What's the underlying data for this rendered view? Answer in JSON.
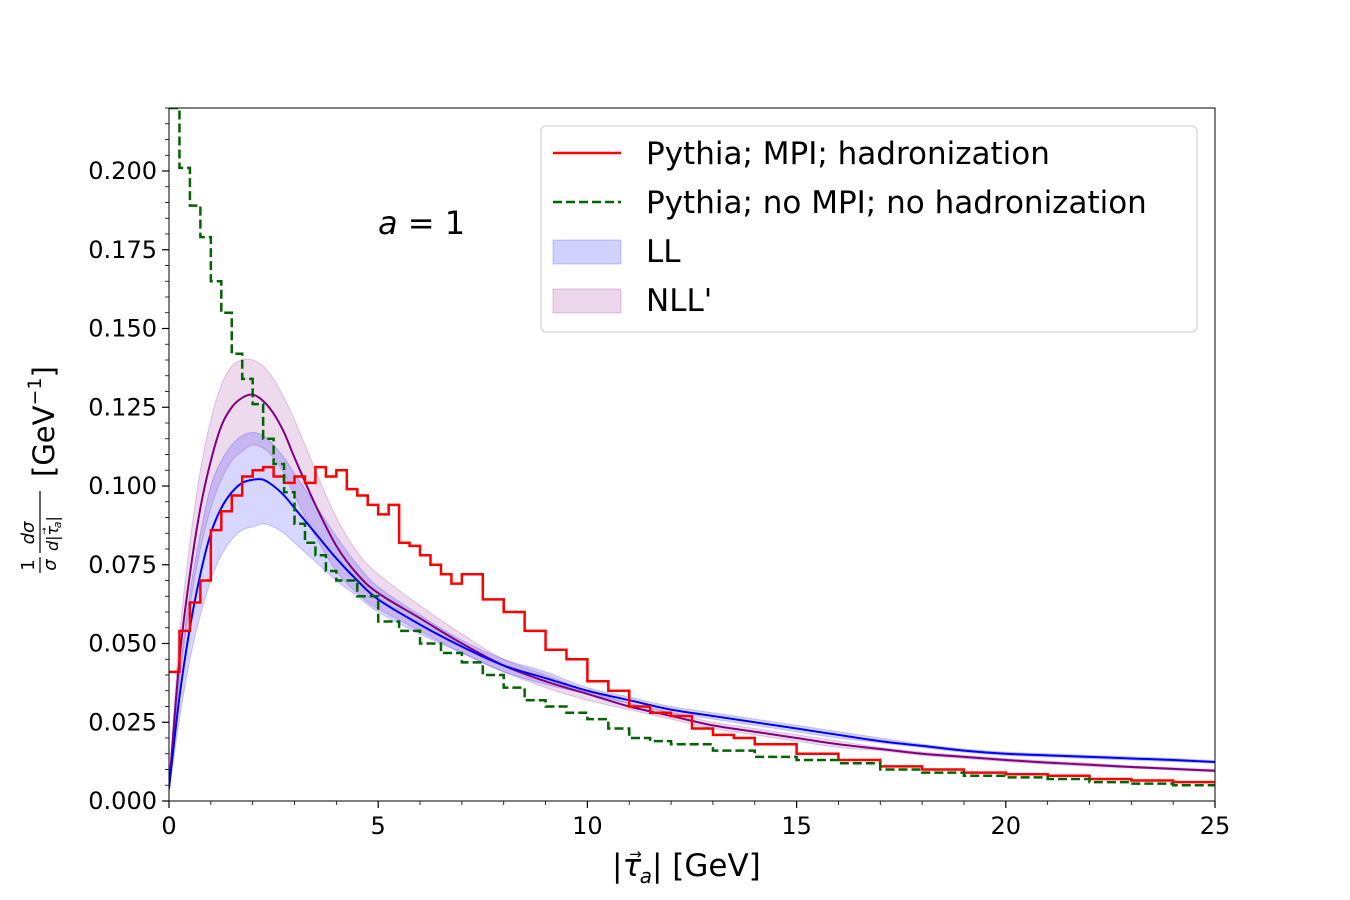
{
  "chart_data": {
    "type": "line",
    "title": "",
    "annotation": {
      "a_italic": "a",
      "a_rest": " = 1"
    },
    "xlabel": {
      "pre": "|",
      "tau": "τ",
      "arrow": "→",
      "sub": "a",
      "post": "| [GeV]"
    },
    "ylabel": {
      "one": "1",
      "sigma": "σ",
      "dsigma": "dσ",
      "d": "d|",
      "tau": "τ",
      "arrow": "→",
      "sub": "a",
      "bar": "|",
      "unit_pre": "[GeV",
      "unit_exp": "−1",
      "unit_post": "]"
    },
    "xlim": [
      0,
      25
    ],
    "ylim": [
      0,
      0.22
    ],
    "xticks": [
      0,
      5,
      10,
      15,
      20,
      25
    ],
    "xtick_labels": [
      "0",
      "5",
      "10",
      "15",
      "20",
      "25"
    ],
    "yticks": [
      0,
      0.025,
      0.05,
      0.075,
      0.1,
      0.125,
      0.15,
      0.175,
      0.2
    ],
    "ytick_labels": [
      "0.000",
      "0.025",
      "0.050",
      "0.075",
      "0.100",
      "0.125",
      "0.150",
      "0.175",
      "0.200"
    ],
    "legend": {
      "position": "top-right",
      "entries": [
        {
          "label": "Pythia; MPI; hadronization",
          "color": "#ff0000",
          "style": "solid"
        },
        {
          "label": "Pythia; no MPI; no hadronization",
          "color": "#006400",
          "style": "dashed"
        },
        {
          "label": "LL",
          "color": "#0000ff",
          "style": "band"
        },
        {
          "label": "NLL'",
          "color": "#800080",
          "style": "band"
        }
      ]
    },
    "series": [
      {
        "name": "Pythia; MPI; hadronization",
        "kind": "step",
        "color": "#ff0000",
        "x": [
          0,
          0.25,
          0.5,
          0.75,
          1.0,
          1.25,
          1.5,
          1.75,
          2.0,
          2.25,
          2.5,
          2.75,
          3.0,
          3.25,
          3.5,
          3.75,
          4.0,
          4.25,
          4.5,
          4.75,
          5.0,
          5.25,
          5.5,
          5.75,
          6.0,
          6.25,
          6.5,
          6.75,
          7.0,
          7.5,
          8.0,
          8.5,
          9.0,
          9.5,
          10.0,
          10.5,
          11.0,
          11.5,
          12.0,
          12.5,
          13.0,
          13.5,
          14.0,
          15.0,
          16.0,
          17.0,
          18.0,
          19.0,
          20.0,
          21.0,
          22.0,
          23.0,
          24.0,
          25.0
        ],
        "values": [
          0.041,
          0.054,
          0.063,
          0.07,
          0.086,
          0.092,
          0.097,
          0.103,
          0.105,
          0.106,
          0.103,
          0.101,
          0.103,
          0.101,
          0.106,
          0.103,
          0.105,
          0.099,
          0.097,
          0.094,
          0.091,
          0.094,
          0.082,
          0.081,
          0.078,
          0.075,
          0.072,
          0.069,
          0.072,
          0.064,
          0.06,
          0.054,
          0.048,
          0.045,
          0.038,
          0.035,
          0.03,
          0.028,
          0.027,
          0.023,
          0.021,
          0.02,
          0.018,
          0.015,
          0.013,
          0.011,
          0.01,
          0.009,
          0.0085,
          0.008,
          0.007,
          0.0065,
          0.006,
          0.005
        ]
      },
      {
        "name": "Pythia; no MPI; no hadronization",
        "kind": "step",
        "color": "#006400",
        "dashed": true,
        "x": [
          0,
          0.25,
          0.5,
          0.75,
          1.0,
          1.25,
          1.5,
          1.75,
          2.0,
          2.25,
          2.5,
          2.75,
          3.0,
          3.25,
          3.5,
          3.75,
          4.0,
          4.5,
          5.0,
          5.5,
          6.0,
          6.5,
          7.0,
          7.5,
          8.0,
          8.5,
          9.0,
          9.5,
          10.0,
          10.5,
          11.0,
          11.5,
          12.0,
          13.0,
          14.0,
          15.0,
          16.0,
          17.0,
          18.0,
          19.0,
          20.0,
          21.0,
          22.0,
          23.0,
          24.0,
          25.0
        ],
        "values": [
          0.22,
          0.201,
          0.189,
          0.179,
          0.165,
          0.155,
          0.142,
          0.134,
          0.126,
          0.115,
          0.107,
          0.098,
          0.088,
          0.082,
          0.078,
          0.073,
          0.07,
          0.065,
          0.057,
          0.054,
          0.05,
          0.047,
          0.044,
          0.04,
          0.036,
          0.032,
          0.03,
          0.028,
          0.026,
          0.023,
          0.02,
          0.019,
          0.018,
          0.016,
          0.014,
          0.013,
          0.012,
          0.01,
          0.009,
          0.008,
          0.0075,
          0.007,
          0.006,
          0.0055,
          0.005,
          0.004
        ]
      },
      {
        "name": "NLL'",
        "kind": "band",
        "color": "#800080",
        "band_color": "#d8a8d8",
        "x": [
          0,
          0.25,
          0.5,
          0.75,
          1.0,
          1.25,
          1.5,
          1.75,
          2.0,
          2.25,
          2.5,
          2.75,
          3.0,
          3.5,
          4.0,
          4.5,
          5.0,
          6.0,
          7.0,
          8.0,
          9.0,
          10.0,
          11.0,
          12.0,
          13.0,
          14.0,
          15.0,
          16.0,
          17.0,
          18.0,
          19.0,
          20.0,
          21.0,
          22.0,
          23.0,
          24.0,
          25.0
        ],
        "central": [
          0.004,
          0.045,
          0.072,
          0.093,
          0.108,
          0.119,
          0.125,
          0.128,
          0.129,
          0.127,
          0.123,
          0.117,
          0.109,
          0.094,
          0.081,
          0.072,
          0.066,
          0.058,
          0.05,
          0.043,
          0.038,
          0.034,
          0.03,
          0.027,
          0.024,
          0.022,
          0.02,
          0.018,
          0.0165,
          0.015,
          0.014,
          0.013,
          0.0122,
          0.0115,
          0.0108,
          0.0102,
          0.0096
        ],
        "lower": [
          0.003,
          0.038,
          0.062,
          0.08,
          0.093,
          0.102,
          0.108,
          0.111,
          0.113,
          0.112,
          0.109,
          0.104,
          0.097,
          0.084,
          0.073,
          0.066,
          0.061,
          0.054,
          0.047,
          0.041,
          0.036,
          0.032,
          0.029,
          0.026,
          0.023,
          0.021,
          0.019,
          0.017,
          0.016,
          0.0145,
          0.0135,
          0.0125,
          0.0117,
          0.011,
          0.0104,
          0.0098,
          0.0092
        ],
        "upper": [
          0.005,
          0.052,
          0.082,
          0.105,
          0.121,
          0.132,
          0.138,
          0.14,
          0.14,
          0.138,
          0.134,
          0.128,
          0.121,
          0.105,
          0.09,
          0.079,
          0.072,
          0.062,
          0.053,
          0.045,
          0.04,
          0.035,
          0.031,
          0.028,
          0.025,
          0.023,
          0.021,
          0.019,
          0.017,
          0.0155,
          0.0145,
          0.0135,
          0.0127,
          0.012,
          0.0112,
          0.0106,
          0.01
        ]
      },
      {
        "name": "LL",
        "kind": "band",
        "color": "#0000ff",
        "band_color": "#a8a8f8",
        "x": [
          0,
          0.25,
          0.5,
          0.75,
          1.0,
          1.25,
          1.5,
          1.75,
          2.0,
          2.25,
          2.5,
          2.75,
          3.0,
          3.5,
          4.0,
          4.5,
          5.0,
          6.0,
          7.0,
          8.0,
          9.0,
          10.0,
          11.0,
          12.0,
          13.0,
          14.0,
          15.0,
          16.0,
          17.0,
          18.0,
          19.0,
          20.0,
          21.0,
          22.0,
          23.0,
          24.0,
          25.0
        ],
        "central": [
          0.004,
          0.033,
          0.055,
          0.072,
          0.085,
          0.093,
          0.098,
          0.101,
          0.102,
          0.102,
          0.1,
          0.097,
          0.093,
          0.085,
          0.077,
          0.07,
          0.064,
          0.056,
          0.049,
          0.043,
          0.039,
          0.035,
          0.032,
          0.029,
          0.027,
          0.025,
          0.023,
          0.021,
          0.019,
          0.0175,
          0.016,
          0.015,
          0.0145,
          0.014,
          0.0135,
          0.013,
          0.0124
        ],
        "lower": [
          0.003,
          0.026,
          0.045,
          0.059,
          0.07,
          0.078,
          0.083,
          0.086,
          0.087,
          0.088,
          0.087,
          0.085,
          0.082,
          0.076,
          0.07,
          0.065,
          0.06,
          0.053,
          0.047,
          0.041,
          0.037,
          0.034,
          0.031,
          0.028,
          0.026,
          0.024,
          0.022,
          0.02,
          0.0185,
          0.017,
          0.0155,
          0.0145,
          0.014,
          0.0135,
          0.013,
          0.0125,
          0.012
        ],
        "upper": [
          0.005,
          0.04,
          0.066,
          0.085,
          0.1,
          0.108,
          0.113,
          0.116,
          0.117,
          0.116,
          0.113,
          0.109,
          0.104,
          0.094,
          0.084,
          0.075,
          0.068,
          0.059,
          0.051,
          0.045,
          0.041,
          0.036,
          0.033,
          0.03,
          0.028,
          0.026,
          0.024,
          0.022,
          0.02,
          0.018,
          0.0165,
          0.0155,
          0.015,
          0.0145,
          0.014,
          0.0135,
          0.0128
        ]
      }
    ]
  }
}
